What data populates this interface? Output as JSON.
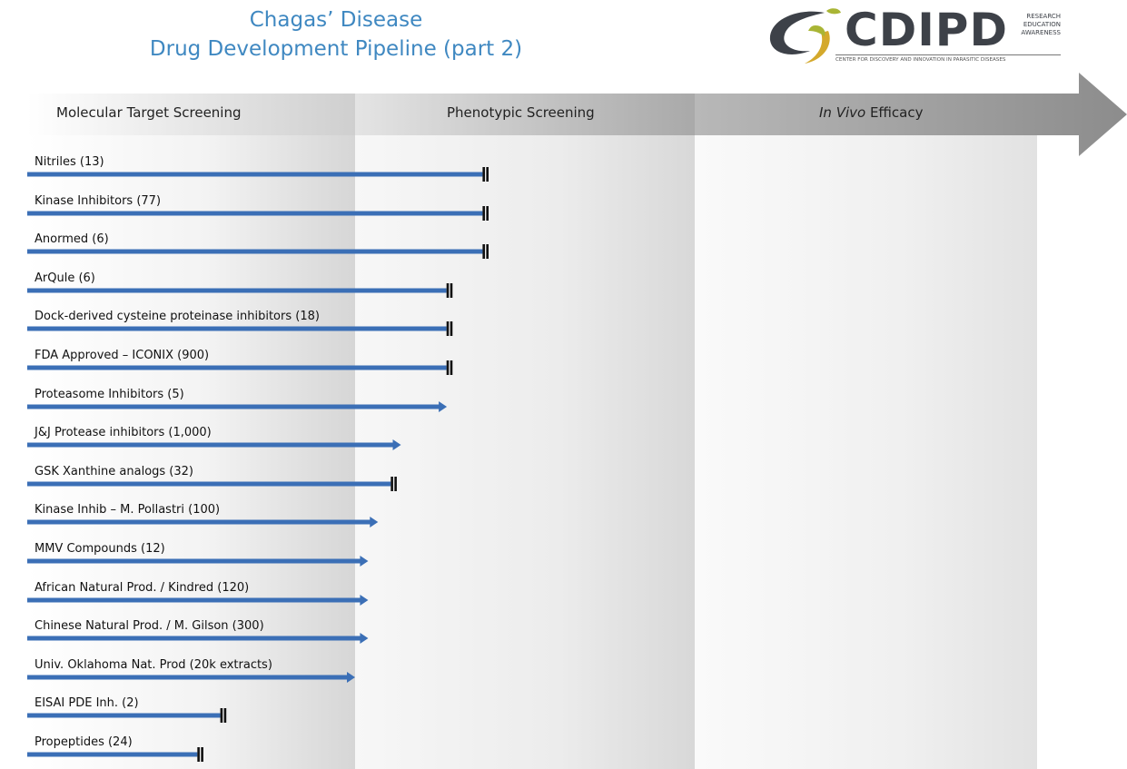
{
  "title": {
    "line1": "Chagas’ Disease",
    "line2": "Drug Development Pipeline (part 2)"
  },
  "logo": {
    "word": "CDIPD",
    "side": [
      "RESEARCH",
      "EDUCATION",
      "AWARENESS"
    ],
    "tagline": "CENTER FOR DISCOVERY AND INNOVATION IN PARASITIC DISEASES",
    "colors": {
      "green": "#a9b535",
      "dark": "#3d4148",
      "gold": "#d4a92c"
    }
  },
  "stages": {
    "molecular": "Molecular Target Screening",
    "phenotypic": "Phenotypic Screening",
    "invivo_italic": "In Vivo",
    "invivo_rest": " Efficacy"
  },
  "colors": {
    "bar": "#3b6fb6",
    "stop": "#111111",
    "header": "#9a9a9a"
  },
  "chart_data": {
    "type": "pipeline",
    "stages": [
      "Molecular Target Screening",
      "Phenotypic Screening",
      "In Vivo Efficacy"
    ],
    "rows": [
      {
        "label": "Nitriles (13)",
        "progress": 1.4,
        "end": "stop"
      },
      {
        "label": "Kinase Inhibitors (77)",
        "progress": 1.4,
        "end": "stop"
      },
      {
        "label": "Anormed (6)",
        "progress": 1.4,
        "end": "stop"
      },
      {
        "label": "ArQule (6)",
        "progress": 1.29,
        "end": "stop"
      },
      {
        "label": "Dock-derived cysteine proteinase inhibitors (18)",
        "progress": 1.29,
        "end": "stop"
      },
      {
        "label": "FDA Approved – ICONIX (900)",
        "progress": 1.29,
        "end": "stop"
      },
      {
        "label": "Proteasome Inhibitors (5)",
        "progress": 1.28,
        "end": "arrow"
      },
      {
        "label": "J&J Protease inhibitors (1,000)",
        "progress": 1.14,
        "end": "arrow"
      },
      {
        "label": "GSK Xanthine analogs (32)",
        "progress": 1.12,
        "end": "stop"
      },
      {
        "label": "Kinase Inhib – M. Pollastri (100)",
        "progress": 1.07,
        "end": "arrow"
      },
      {
        "label": "MMV Compounds (12)",
        "progress": 1.04,
        "end": "arrow"
      },
      {
        "label": "African Natural Prod. / Kindred (120)",
        "progress": 1.04,
        "end": "arrow"
      },
      {
        "label": "Chinese Natural Prod. / M. Gilson (300)",
        "progress": 1.04,
        "end": "arrow"
      },
      {
        "label": "Univ. Oklahoma Nat. Prod (20k extracts)",
        "progress": 1.0,
        "end": "arrow"
      },
      {
        "label": "EISAI PDE Inh. (2)",
        "progress": 0.6,
        "end": "stop"
      },
      {
        "label": "Propeptides (24)",
        "progress": 0.53,
        "end": "stop"
      }
    ]
  }
}
